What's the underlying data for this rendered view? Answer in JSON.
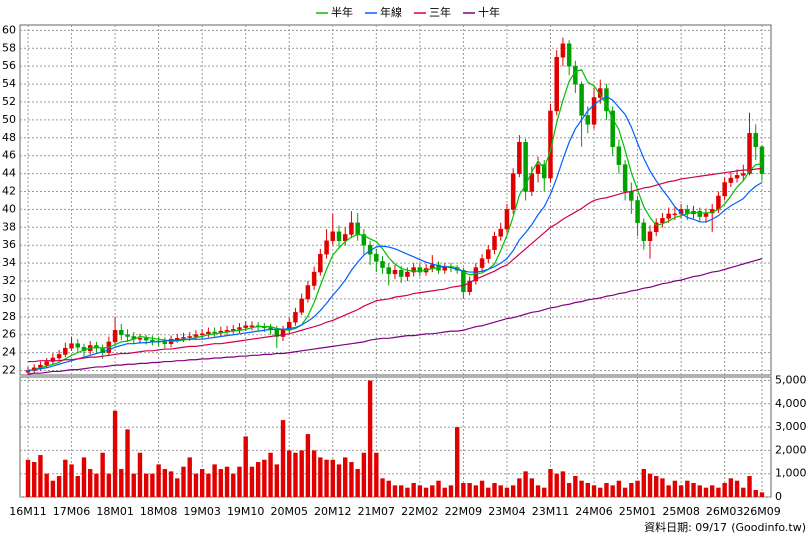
{
  "chart_data": {
    "type": "candlestick",
    "categories": [
      "16M11",
      null,
      null,
      null,
      null,
      null,
      null,
      "17M06",
      null,
      null,
      null,
      null,
      null,
      null,
      "18M01",
      null,
      null,
      null,
      null,
      null,
      null,
      "18M08",
      null,
      null,
      null,
      null,
      null,
      null,
      "19M03",
      null,
      null,
      null,
      null,
      null,
      null,
      "19M10",
      null,
      null,
      null,
      null,
      null,
      null,
      "20M05",
      null,
      null,
      null,
      null,
      null,
      null,
      "20M12",
      null,
      null,
      null,
      null,
      null,
      null,
      "21M07",
      null,
      null,
      null,
      null,
      null,
      null,
      "22M02",
      null,
      null,
      null,
      null,
      null,
      null,
      "22M09",
      null,
      null,
      null,
      null,
      null,
      null,
      "23M04",
      null,
      null,
      null,
      null,
      null,
      null,
      "23M11",
      null,
      null,
      null,
      null,
      null,
      null,
      "24M06",
      null,
      null,
      null,
      null,
      null,
      null,
      "25M01",
      null,
      null,
      null,
      null,
      null,
      null,
      "25M08",
      null,
      null,
      null,
      null,
      null,
      null,
      "26M03",
      null,
      null,
      null,
      null,
      null,
      "26M09"
    ],
    "open": [
      21.8,
      22.0,
      22.3,
      22.6,
      23.0,
      23.4,
      23.8,
      24.5,
      25.0,
      24.6,
      24.2,
      24.8,
      24.5,
      24.0,
      25.2,
      26.5,
      26.0,
      25.8,
      25.5,
      25.6,
      25.4,
      25.3,
      25.2,
      25.0,
      25.5,
      25.6,
      25.7,
      25.8,
      26.0,
      26.1,
      26.3,
      26.2,
      26.4,
      26.5,
      26.6,
      26.8,
      27.0,
      27.0,
      26.9,
      26.8,
      26.6,
      25.8,
      26.5,
      27.4,
      28.5,
      30.0,
      31.5,
      33.0,
      35.0,
      36.5,
      37.5,
      36.5,
      37.2,
      38.5,
      37.2,
      36.0,
      35.0,
      34.2,
      33.5,
      32.8,
      33.2,
      32.5,
      33.0,
      33.5,
      33.0,
      33.4,
      33.8,
      33.2,
      33.6,
      33.5,
      33.2,
      30.8,
      32.0,
      33.5,
      34.5,
      35.5,
      37.0,
      37.8,
      40.0,
      44.0,
      47.5,
      42.0,
      44.0,
      45.0,
      43.5,
      51.0,
      57.0,
      58.5,
      56.0,
      54.0,
      50.5,
      49.5,
      52.5,
      53.5,
      51.0,
      47.0,
      45.0,
      42.0,
      41.0,
      38.5,
      36.5,
      37.5,
      38.5,
      39.0,
      39.5,
      39.5,
      40.0,
      39.5,
      39.8,
      39.2,
      39.6,
      40.0,
      41.5,
      43.0,
      43.5,
      43.8,
      44.0,
      48.5,
      47.0
    ],
    "high": [
      22.4,
      22.7,
      23.0,
      23.4,
      23.9,
      24.3,
      25.1,
      25.8,
      25.5,
      25.0,
      25.3,
      25.2,
      24.9,
      25.8,
      28.0,
      27.2,
      26.6,
      26.3,
      26.1,
      26.0,
      25.9,
      25.8,
      25.7,
      25.9,
      26.1,
      26.2,
      26.3,
      26.5,
      26.6,
      26.8,
      26.8,
      26.9,
      27.0,
      27.1,
      27.3,
      27.5,
      27.5,
      27.4,
      27.3,
      27.2,
      27.0,
      27.0,
      27.9,
      29.0,
      30.6,
      32.0,
      33.6,
      35.6,
      37.8,
      39.5,
      38.2,
      38.0,
      39.8,
      39.6,
      37.8,
      36.5,
      35.6,
      34.8,
      34.0,
      33.8,
      33.7,
      33.5,
      34.0,
      34.0,
      33.9,
      34.9,
      34.2,
      34.0,
      34.0,
      33.8,
      33.5,
      32.5,
      34.0,
      35.0,
      36.0,
      37.5,
      38.5,
      40.6,
      44.6,
      48.3,
      47.9,
      44.8,
      45.9,
      45.5,
      51.8,
      57.8,
      59.2,
      58.9,
      56.6,
      54.3,
      51.5,
      53.6,
      54.5,
      54.0,
      51.5,
      47.8,
      45.5,
      43.0,
      41.5,
      39.0,
      38.2,
      39.0,
      39.6,
      40.2,
      40.3,
      40.6,
      40.5,
      40.4,
      40.2,
      40.1,
      40.6,
      42.0,
      43.6,
      44.2,
      44.5,
      45.0,
      50.8,
      49.5,
      47.2
    ],
    "low": [
      21.5,
      21.7,
      22.0,
      22.3,
      22.7,
      23.0,
      23.5,
      24.2,
      24.1,
      23.6,
      23.8,
      24.0,
      23.3,
      23.6,
      24.8,
      25.4,
      25.2,
      25.0,
      25.0,
      24.9,
      24.8,
      24.7,
      24.5,
      24.6,
      25.1,
      25.2,
      25.3,
      25.4,
      25.6,
      25.7,
      25.8,
      25.8,
      26.0,
      26.1,
      26.2,
      26.4,
      26.5,
      26.4,
      26.3,
      26.0,
      24.5,
      25.3,
      26.2,
      27.0,
      28.2,
      29.6,
      31.0,
      32.6,
      34.5,
      36.0,
      35.8,
      36.0,
      36.8,
      36.5,
      35.0,
      33.8,
      33.0,
      32.8,
      31.5,
      32.2,
      31.8,
      32.0,
      32.5,
      32.5,
      32.6,
      33.0,
      32.8,
      32.8,
      33.0,
      32.8,
      30.0,
      30.4,
      31.6,
      33.0,
      34.0,
      35.0,
      36.5,
      37.4,
      39.5,
      43.6,
      41.0,
      41.5,
      43.0,
      42.0,
      43.0,
      50.5,
      56.0,
      55.0,
      53.0,
      47.0,
      48.5,
      49.0,
      51.8,
      50.0,
      46.0,
      44.0,
      41.0,
      39.5,
      37.0,
      35.5,
      34.5,
      37.0,
      38.0,
      38.5,
      38.8,
      39.0,
      38.8,
      39.0,
      38.6,
      38.5,
      37.5,
      39.6,
      41.0,
      42.5,
      43.0,
      43.2,
      43.8,
      45.5,
      43.2
    ],
    "close": [
      22.0,
      22.3,
      22.6,
      23.0,
      23.4,
      23.8,
      24.5,
      25.0,
      24.6,
      24.2,
      24.8,
      24.5,
      24.0,
      25.2,
      26.5,
      26.0,
      25.8,
      25.5,
      25.6,
      25.4,
      25.3,
      25.2,
      25.0,
      25.5,
      25.6,
      25.7,
      25.8,
      26.0,
      26.1,
      26.3,
      26.2,
      26.4,
      26.5,
      26.6,
      26.8,
      27.0,
      27.0,
      26.9,
      26.8,
      26.6,
      25.8,
      26.5,
      27.4,
      28.5,
      30.0,
      31.5,
      33.0,
      35.0,
      36.5,
      37.5,
      36.5,
      37.2,
      38.5,
      37.2,
      36.0,
      35.0,
      34.2,
      33.5,
      32.8,
      33.2,
      32.5,
      33.0,
      33.5,
      33.0,
      33.4,
      33.8,
      33.2,
      33.6,
      33.5,
      33.2,
      30.8,
      32.0,
      33.5,
      34.5,
      35.5,
      37.0,
      37.8,
      40.0,
      44.0,
      47.5,
      42.0,
      44.0,
      45.0,
      43.5,
      51.0,
      57.0,
      58.5,
      56.0,
      54.0,
      50.5,
      49.5,
      52.5,
      53.5,
      51.0,
      47.0,
      45.0,
      42.0,
      41.0,
      38.5,
      36.5,
      37.5,
      38.5,
      39.0,
      39.5,
      39.5,
      40.0,
      39.5,
      39.8,
      39.2,
      39.6,
      40.0,
      41.5,
      43.0,
      43.5,
      43.8,
      44.0,
      48.5,
      47.0,
      44.0
    ],
    "up_color": "#e00000",
    "down_color": "#00a000",
    "series": [
      {
        "name": "半年",
        "color": "#00c000",
        "values": [
          22.0,
          22.1,
          22.3,
          22.5,
          22.7,
          22.9,
          23.3,
          23.7,
          24.0,
          24.3,
          24.5,
          24.6,
          24.5,
          24.6,
          24.9,
          25.2,
          25.3,
          25.5,
          25.8,
          25.7,
          25.6,
          25.5,
          25.4,
          25.3,
          25.3,
          25.4,
          25.5,
          25.7,
          25.8,
          26.0,
          26.1,
          26.2,
          26.3,
          26.4,
          26.5,
          26.6,
          26.8,
          26.9,
          26.9,
          26.9,
          26.7,
          26.6,
          26.5,
          26.7,
          27.1,
          28.1,
          29.6,
          31.5,
          33.3,
          34.9,
          35.7,
          36.4,
          36.9,
          37.2,
          37.1,
          36.7,
          36.4,
          35.6,
          34.6,
          33.9,
          33.4,
          33.2,
          33.1,
          33.1,
          33.2,
          33.4,
          33.5,
          33.6,
          33.6,
          33.5,
          33.0,
          32.7,
          32.8,
          32.9,
          33.3,
          33.9,
          35.4,
          37.1,
          39.2,
          41.6,
          42.7,
          44.2,
          45.4,
          44.6,
          46.6,
          49.7,
          52.2,
          54.3,
          55.4,
          55.6,
          54.2,
          53.8,
          52.8,
          51.7,
          50.1,
          48.9,
          46.6,
          44.1,
          42.2,
          40.3,
          39.1,
          38.2,
          38.4,
          38.7,
          39.1,
          39.3,
          39.5,
          39.7,
          39.6,
          39.6,
          39.7,
          40.0,
          40.6,
          41.5,
          42.5,
          43.2,
          44.3,
          45.0,
          45.1
        ]
      },
      {
        "name": "年線",
        "color": "#0060ff",
        "values": [
          22.0,
          22.1,
          22.2,
          22.3,
          22.5,
          22.7,
          22.9,
          23.1,
          23.3,
          23.5,
          23.7,
          23.9,
          24.1,
          24.3,
          24.6,
          24.8,
          25.0,
          25.0,
          25.1,
          25.1,
          25.2,
          25.2,
          25.3,
          25.4,
          25.4,
          25.5,
          25.5,
          25.5,
          25.5,
          25.6,
          25.7,
          25.8,
          25.9,
          26.0,
          26.1,
          26.2,
          26.3,
          26.4,
          26.5,
          26.6,
          26.6,
          26.6,
          26.7,
          26.8,
          27.1,
          27.5,
          28.0,
          28.7,
          29.5,
          30.4,
          31.2,
          32.1,
          33.2,
          34.1,
          34.9,
          35.4,
          35.8,
          35.9,
          35.8,
          35.6,
          35.3,
          35.0,
          34.7,
          34.4,
          34.1,
          33.9,
          33.7,
          33.6,
          33.5,
          33.3,
          33.1,
          33.0,
          33.0,
          33.1,
          33.3,
          33.6,
          34.0,
          34.5,
          35.4,
          36.6,
          37.4,
          38.3,
          39.4,
          40.3,
          41.7,
          43.5,
          45.6,
          47.5,
          49.0,
          50.0,
          51.0,
          51.7,
          52.2,
          52.6,
          52.2,
          51.4,
          50.6,
          49.2,
          47.4,
          45.7,
          44.3,
          43.2,
          42.2,
          41.3,
          40.3,
          39.6,
          39.1,
          38.9,
          38.6,
          38.6,
          38.9,
          39.3,
          39.9,
          40.4,
          40.8,
          41.2,
          42.0,
          42.6,
          43.0
        ]
      },
      {
        "name": "三年",
        "color": "#d00050",
        "values": [
          23.0,
          23.0,
          23.1,
          23.1,
          23.1,
          23.1,
          23.2,
          23.2,
          23.3,
          23.4,
          23.5,
          23.5,
          23.6,
          23.7,
          23.8,
          23.9,
          23.9,
          24.0,
          24.1,
          24.2,
          24.2,
          24.3,
          24.4,
          24.4,
          24.5,
          24.6,
          24.7,
          24.7,
          24.8,
          24.9,
          25.0,
          25.0,
          25.1,
          25.2,
          25.3,
          25.4,
          25.5,
          25.6,
          25.7,
          25.8,
          25.9,
          26.0,
          26.1,
          26.3,
          26.5,
          26.7,
          26.9,
          27.1,
          27.4,
          27.6,
          27.9,
          28.2,
          28.5,
          28.8,
          29.2,
          29.5,
          29.8,
          29.9,
          30.0,
          30.2,
          30.3,
          30.4,
          30.6,
          30.7,
          30.8,
          30.9,
          31.0,
          31.1,
          31.3,
          31.4,
          31.5,
          31.8,
          32.2,
          32.5,
          32.8,
          33.1,
          33.5,
          33.8,
          34.4,
          35.0,
          35.6,
          36.2,
          36.8,
          37.4,
          38.0,
          38.4,
          38.9,
          39.3,
          39.7,
          40.1,
          40.6,
          41.0,
          41.2,
          41.3,
          41.5,
          41.7,
          41.9,
          42.0,
          42.2,
          42.4,
          42.5,
          42.7,
          42.9,
          43.1,
          43.2,
          43.4,
          43.5,
          43.6,
          43.7,
          43.8,
          43.9,
          44.0,
          44.1,
          44.2,
          44.3,
          44.4,
          44.4,
          44.5,
          44.6
        ]
      },
      {
        "name": "十年",
        "color": "#800080",
        "values": [
          21.6,
          21.7,
          21.7,
          21.8,
          21.9,
          21.9,
          22.0,
          22.1,
          22.1,
          22.2,
          22.3,
          22.4,
          22.4,
          22.5,
          22.6,
          22.6,
          22.7,
          22.7,
          22.8,
          22.8,
          22.9,
          22.9,
          23.0,
          23.0,
          23.1,
          23.1,
          23.2,
          23.2,
          23.3,
          23.3,
          23.4,
          23.4,
          23.5,
          23.5,
          23.6,
          23.6,
          23.7,
          23.7,
          23.8,
          23.8,
          23.9,
          23.9,
          24.0,
          24.1,
          24.2,
          24.3,
          24.4,
          24.5,
          24.6,
          24.7,
          24.8,
          24.9,
          25.0,
          25.1,
          25.2,
          25.4,
          25.5,
          25.6,
          25.6,
          25.7,
          25.8,
          25.9,
          25.9,
          26.0,
          26.1,
          26.1,
          26.2,
          26.3,
          26.4,
          26.4,
          26.5,
          26.7,
          26.9,
          27.0,
          27.2,
          27.4,
          27.6,
          27.8,
          27.9,
          28.1,
          28.3,
          28.5,
          28.6,
          28.8,
          29.0,
          29.1,
          29.3,
          29.4,
          29.6,
          29.7,
          29.9,
          30.0,
          30.1,
          30.3,
          30.4,
          30.6,
          30.7,
          30.9,
          31.0,
          31.2,
          31.3,
          31.5,
          31.7,
          31.8,
          32.0,
          32.1,
          32.3,
          32.5,
          32.6,
          32.8,
          33.0,
          33.1,
          33.3,
          33.5,
          33.7,
          33.9,
          34.1,
          34.3,
          34.5
        ]
      }
    ],
    "ylim": [
      21.5,
      60.6
    ],
    "yticks": [
      22,
      24,
      26,
      28,
      30,
      32,
      34,
      36,
      38,
      40,
      42,
      44,
      46,
      48,
      50,
      52,
      54,
      56,
      58,
      60
    ],
    "grid": true,
    "volume": {
      "type": "bar",
      "color": "#e00000",
      "values": [
        1600,
        1500,
        1800,
        1000,
        700,
        900,
        1600,
        1400,
        900,
        1700,
        1200,
        1000,
        1900,
        1000,
        3700,
        1200,
        2900,
        1000,
        1900,
        1000,
        1000,
        1400,
        1200,
        1100,
        800,
        1300,
        1700,
        1000,
        1200,
        1000,
        1400,
        1200,
        1300,
        1000,
        1300,
        2600,
        1300,
        1500,
        1600,
        1900,
        1400,
        3300,
        2000,
        1900,
        2000,
        2700,
        2000,
        1700,
        1600,
        1600,
        1400,
        1700,
        1500,
        1200,
        1900,
        5000,
        1900,
        800,
        700,
        500,
        500,
        400,
        600,
        500,
        400,
        500,
        700,
        400,
        500,
        3000,
        600,
        600,
        500,
        700,
        400,
        600,
        500,
        400,
        500,
        800,
        1100,
        800,
        500,
        400,
        1200,
        1000,
        1100,
        600,
        900,
        700,
        600,
        500,
        400,
        600,
        500,
        700,
        400,
        600,
        700,
        1200,
        1000,
        900,
        800,
        500,
        700,
        500,
        700,
        600,
        500,
        400,
        500,
        400,
        600,
        800,
        700,
        400,
        900,
        300,
        200
      ],
      "ylim": [
        0,
        5150
      ],
      "yticks": [
        0,
        {
          "value": 1000,
          "label": "1,000"
        },
        {
          "value": 2000,
          "label": "2,000"
        },
        {
          "value": 3000,
          "label": "3,000"
        },
        {
          "value": 4000,
          "label": "4,000"
        },
        {
          "value": 5000,
          "label": "5,000"
        }
      ]
    },
    "date_note": "資料日期: 09/17",
    "source": "(Goodinfo.tw)"
  }
}
